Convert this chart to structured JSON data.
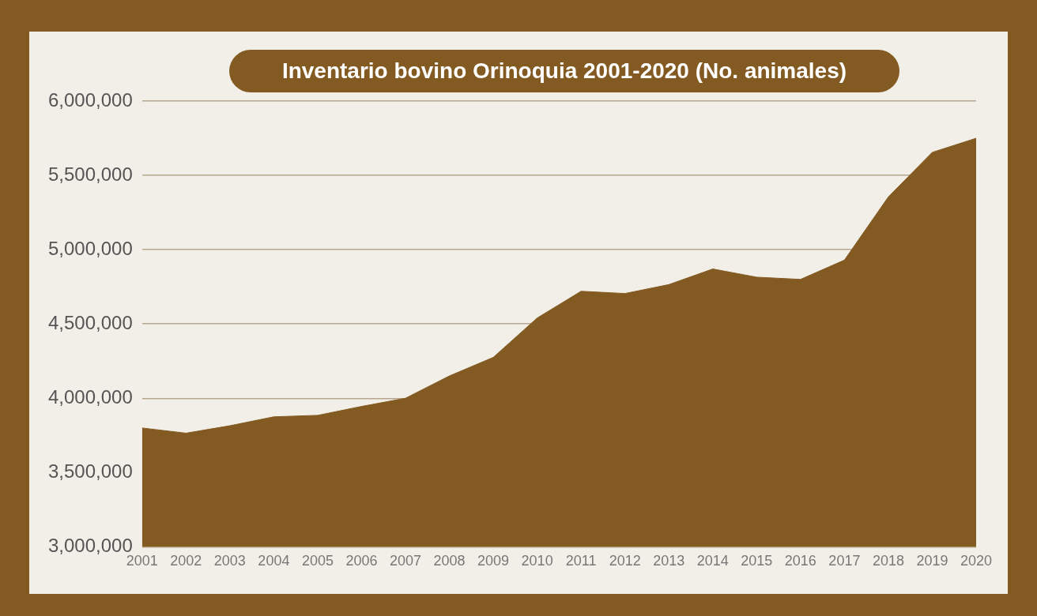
{
  "chart_data": {
    "type": "area",
    "title": "Inventario bovino Orinoquia 2001-2020 (No. animales)",
    "categories": [
      "2001",
      "2002",
      "2003",
      "2004",
      "2005",
      "2006",
      "2007",
      "2008",
      "2009",
      "2010",
      "2011",
      "2012",
      "2013",
      "2014",
      "2015",
      "2016",
      "2017",
      "2018",
      "2019",
      "2020"
    ],
    "series": [
      {
        "color": "#835b22",
        "values": [
          3800000,
          3765000,
          3815000,
          3875000,
          3885000,
          3945000,
          4000000,
          4150000,
          4275000,
          4540000,
          4720000,
          4705000,
          4765000,
          4870000,
          4815000,
          4800000,
          4930000,
          5355000,
          5655000,
          5750000
        ]
      }
    ],
    "ylim": [
      3000000,
      6000000
    ],
    "yticks": [
      {
        "value": 3000000,
        "label": "3,000,000"
      },
      {
        "value": 3500000,
        "label": "3,500,000"
      },
      {
        "value": 4000000,
        "label": "4,000,000"
      },
      {
        "value": 4500000,
        "label": "4,500,000"
      },
      {
        "value": 5000000,
        "label": "5,000,000"
      },
      {
        "value": 5500000,
        "label": "5,500,000"
      },
      {
        "value": 6000000,
        "label": "6,000,000"
      }
    ],
    "grid": "y"
  }
}
